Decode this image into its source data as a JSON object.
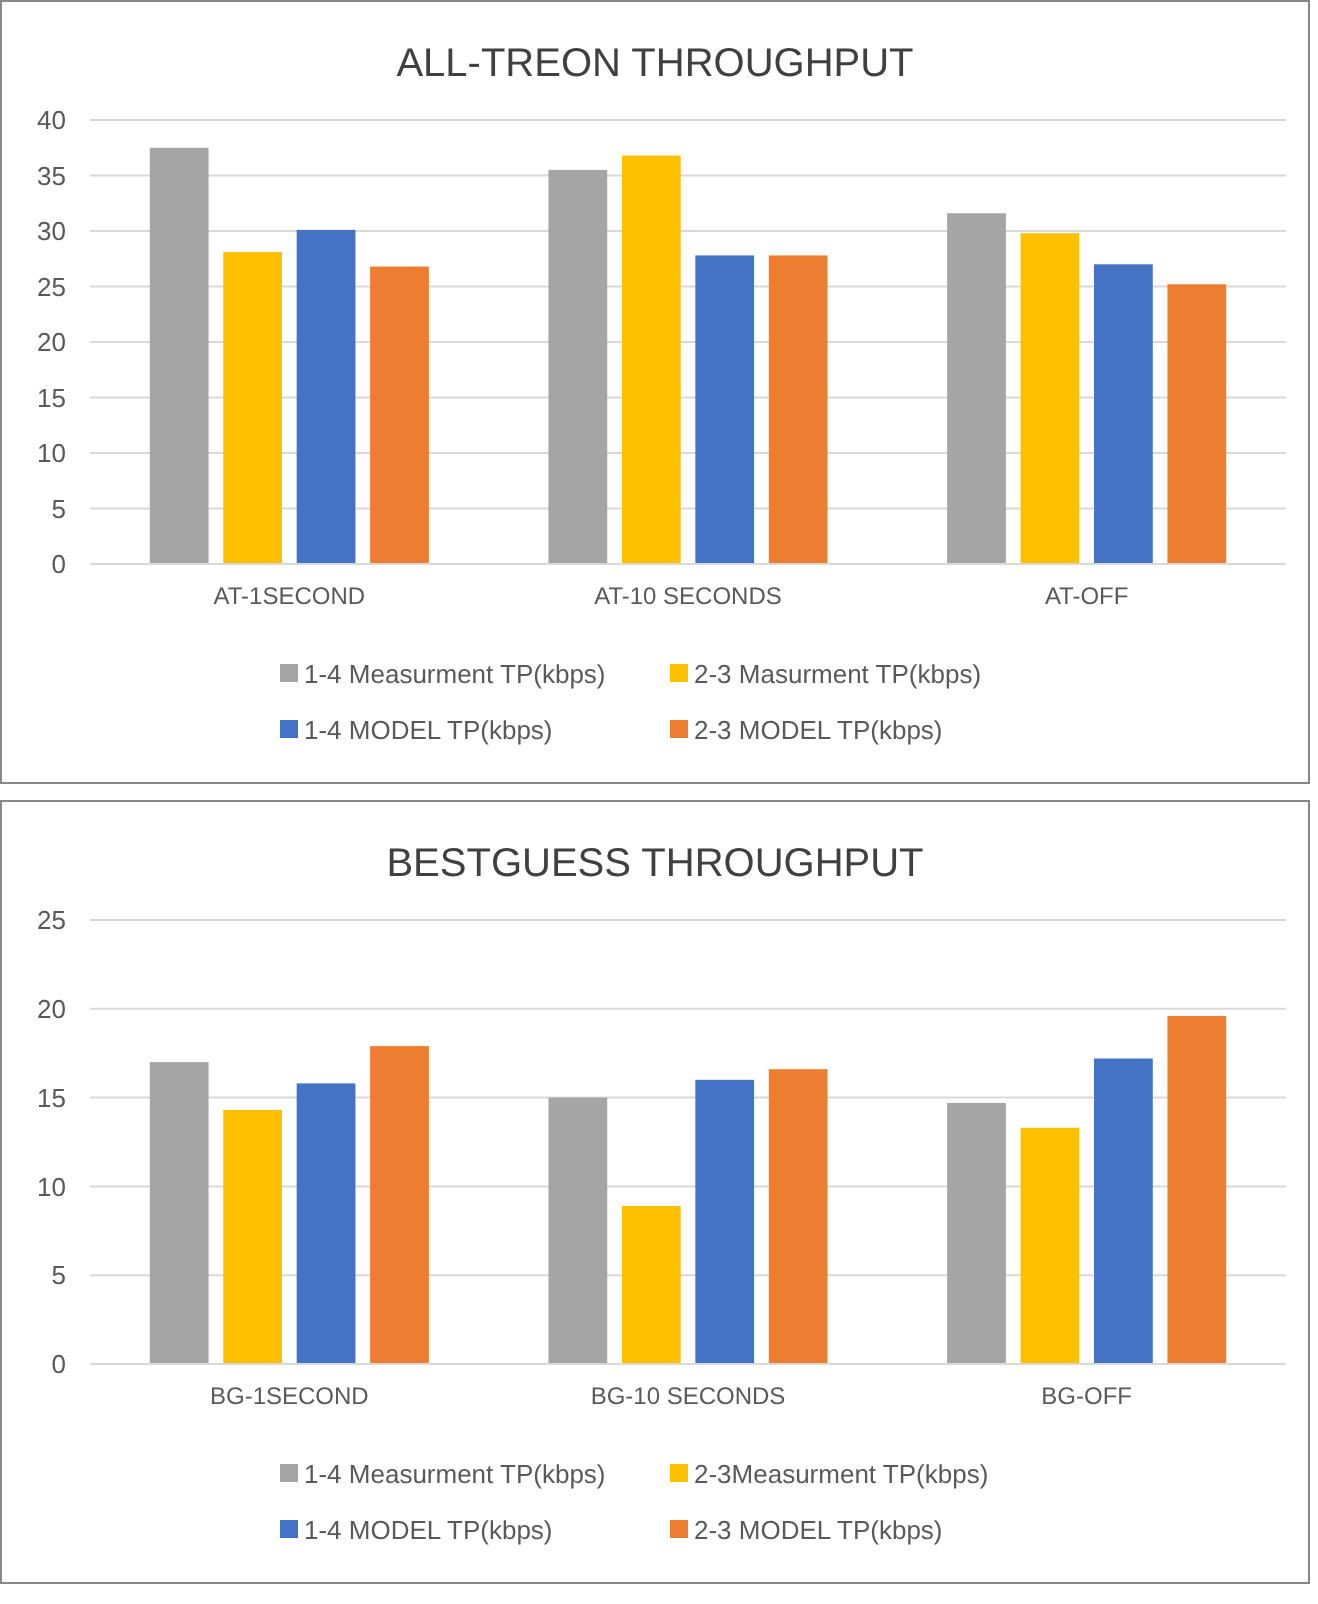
{
  "chart_data": [
    {
      "type": "bar",
      "title": "ALL-TREON THROUGHPUT",
      "categories": [
        "AT-1SECOND",
        "AT-10 SECONDS",
        "AT-OFF"
      ],
      "series": [
        {
          "name": "1-4 Measurment TP(kbps)",
          "color": "#a5a5a5",
          "values": [
            37.5,
            35.5,
            31.6
          ]
        },
        {
          "name": "2-3 Masurment TP(kbps)",
          "color": "#ffc000",
          "values": [
            28.1,
            36.8,
            29.8
          ]
        },
        {
          "name": "1-4 MODEL TP(kbps)",
          "color": "#4472c4",
          "values": [
            30.1,
            27.8,
            27.0
          ]
        },
        {
          "name": "2-3 MODEL TP(kbps)",
          "color": "#ed7d31",
          "values": [
            26.8,
            27.8,
            25.2
          ]
        }
      ],
      "ylim": [
        0,
        40
      ],
      "yticks": [
        0,
        5,
        10,
        15,
        20,
        25,
        30,
        35,
        40
      ],
      "grid": "y",
      "legend": "bottom"
    },
    {
      "type": "bar",
      "title": "BESTGUESS THROUGHPUT",
      "categories": [
        "BG-1SECOND",
        "BG-10 SECONDS",
        "BG-OFF"
      ],
      "series": [
        {
          "name": "1-4 Measurment TP(kbps)",
          "color": "#a5a5a5",
          "values": [
            17.0,
            15.0,
            14.7
          ]
        },
        {
          "name": "2-3Measurment TP(kbps)",
          "color": "#ffc000",
          "values": [
            14.3,
            8.9,
            13.3
          ]
        },
        {
          "name": "1-4 MODEL TP(kbps)",
          "color": "#4472c4",
          "values": [
            15.8,
            16.0,
            17.2
          ]
        },
        {
          "name": "2-3 MODEL TP(kbps)",
          "color": "#ed7d31",
          "values": [
            17.9,
            16.6,
            19.6
          ]
        }
      ],
      "ylim": [
        0,
        25
      ],
      "yticks": [
        0,
        5,
        10,
        15,
        20,
        25
      ],
      "grid": "y",
      "legend": "bottom"
    }
  ]
}
